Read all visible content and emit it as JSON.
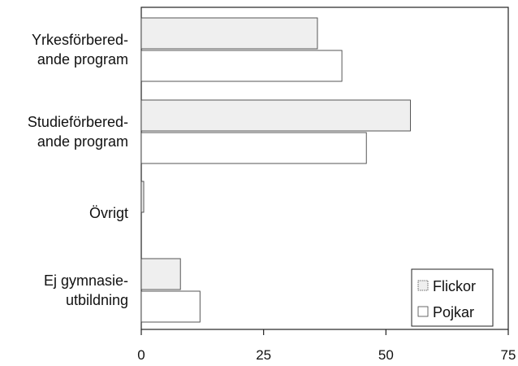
{
  "chart_data": {
    "type": "bar",
    "orientation": "horizontal",
    "title": "",
    "xlabel": "",
    "ylabel": "",
    "xlim": [
      0,
      75
    ],
    "xticks": [
      0,
      25,
      50,
      75
    ],
    "grid": false,
    "legend_position": "bottom-right",
    "categories": [
      [
        "Yrkesförbered-",
        "ande program"
      ],
      [
        "Studieförbered-",
        "ande program"
      ],
      [
        "Övrigt"
      ],
      [
        "Ej gymnasie-",
        "utbildning"
      ]
    ],
    "series": [
      {
        "name": "Flickor",
        "values": [
          36,
          55,
          0.5,
          8
        ],
        "color": "#efefef"
      },
      {
        "name": "Pojkar",
        "values": [
          41,
          46,
          0,
          12
        ],
        "color": "#ffffff"
      }
    ]
  }
}
